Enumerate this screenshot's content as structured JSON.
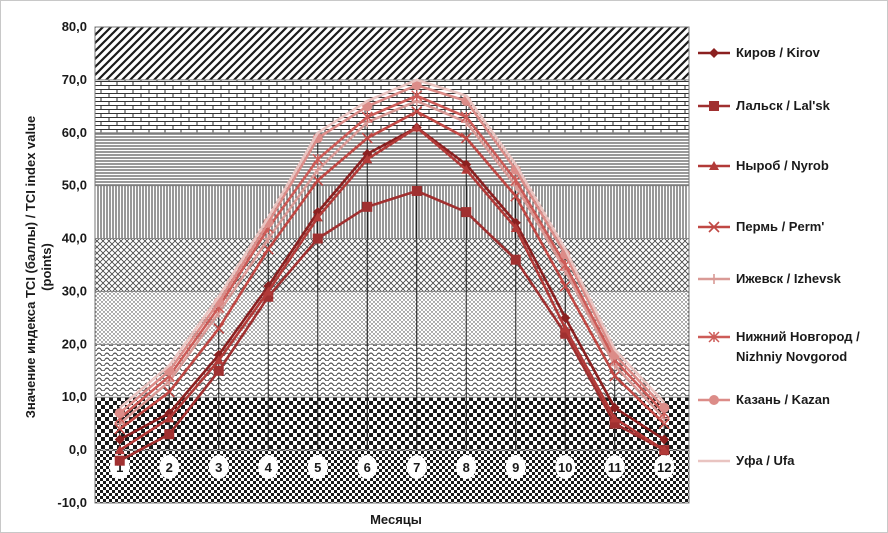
{
  "chart_data": {
    "type": "line",
    "xlabel": "Месяцы",
    "ylabel_lines": [
      "Значение индекса TCI (баллы) / TCI index value",
      "(points)"
    ],
    "ylim": [
      -10,
      80
    ],
    "yticks": [
      "-10,0",
      "0,0",
      "10,0",
      "20,0",
      "30,0",
      "40,0",
      "50,0",
      "60,0",
      "70,0",
      "80,0"
    ],
    "categories": [
      "1",
      "2",
      "3",
      "4",
      "5",
      "6",
      "7",
      "8",
      "9",
      "10",
      "11",
      "12"
    ],
    "legend_position": "right",
    "series": [
      {
        "name": "Киров / Kirov",
        "name_lines": [
          "Киров / Kirov"
        ],
        "color": "#8b2020",
        "marker": "diamond",
        "values": [
          2,
          7,
          18,
          31,
          45,
          56,
          61,
          54,
          43,
          25,
          8,
          2
        ]
      },
      {
        "name": "Лальск / Lal'sk",
        "name_lines": [
          "Лальск / Lal'sk"
        ],
        "color": "#a03030",
        "marker": "square",
        "values": [
          -2,
          3,
          15,
          29,
          40,
          46,
          49,
          45,
          36,
          22,
          5,
          0
        ]
      },
      {
        "name": "Ныроб / Nyrob",
        "name_lines": [
          "Ныроб / Nyrob"
        ],
        "color": "#b23a38",
        "marker": "triangle",
        "values": [
          0,
          6,
          17,
          30,
          44,
          55,
          61,
          53,
          42,
          23,
          6,
          0
        ]
      },
      {
        "name": "Пермь / Perm'",
        "name_lines": [
          "Пермь / Perm'"
        ],
        "color": "#c04844",
        "marker": "x",
        "values": [
          4,
          11,
          23,
          38,
          51,
          59,
          64,
          59,
          48,
          31,
          14,
          5
        ]
      },
      {
        "name": "Ижевск / Izhevsk",
        "name_lines": [
          "Ижевск / Izhevsk"
        ],
        "color": "#d99a96",
        "marker": "plus",
        "values": [
          5,
          13,
          26,
          40,
          53,
          62,
          66,
          62,
          50,
          34,
          16,
          6
        ]
      },
      {
        "name": "Нижний Новгород / Nizhniy Novgorod",
        "name_lines": [
          "Нижний Новгород /",
          "Nizhniy Novgorod"
        ],
        "color": "#cd5c58",
        "marker": "asterisk",
        "values": [
          6,
          14,
          27,
          42,
          55,
          63,
          67,
          63,
          51,
          35,
          17,
          7
        ]
      },
      {
        "name": "Казань / Kazan",
        "name_lines": [
          "Казань / Kazan"
        ],
        "color": "#dc8c88",
        "marker": "circle",
        "values": [
          7,
          15,
          28,
          43,
          59,
          65,
          69,
          66,
          53,
          37,
          18,
          8
        ]
      },
      {
        "name": "Уфа / Ufa",
        "name_lines": [
          "Уфа / Ufa"
        ],
        "color": "#e9c4c1",
        "marker": "none",
        "values": [
          8,
          16,
          29,
          44,
          60,
          66,
          70,
          67,
          54,
          38,
          19,
          9
        ]
      }
    ]
  }
}
